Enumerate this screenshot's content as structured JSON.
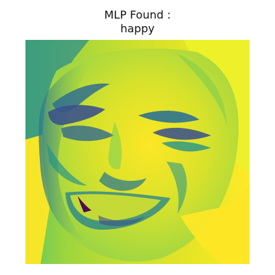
{
  "figure": {
    "title_line_1": "MLP Found :",
    "title_line_2": "happy"
  },
  "image": {
    "subject": "face-heatmap",
    "colormap": [
      "#440154",
      "#3b528b",
      "#21918c",
      "#5ec962",
      "#fde725"
    ]
  }
}
